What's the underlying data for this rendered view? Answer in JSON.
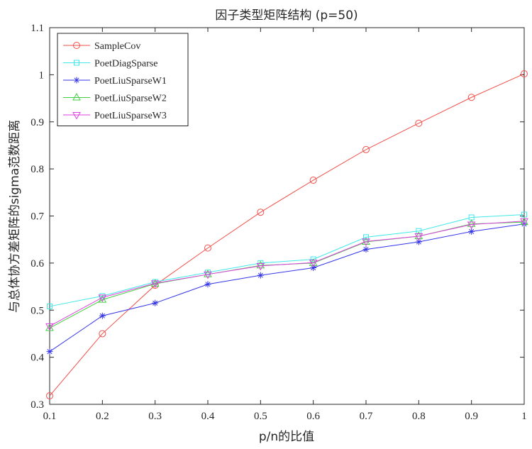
{
  "chart_data": {
    "type": "line",
    "title": "因子类型矩阵结构 (p=50)",
    "xlabel": "p/n的比值",
    "ylabel": "与总体协方差矩阵的sigma范数距离",
    "xlim": [
      0.1,
      1
    ],
    "ylim": [
      0.3,
      1.1
    ],
    "x": [
      0.1,
      0.2,
      0.3,
      0.4,
      0.5,
      0.6,
      0.7,
      0.8,
      0.9,
      1.0
    ],
    "xticks": [
      "0.1",
      "0.2",
      "0.3",
      "0.4",
      "0.5",
      "0.6",
      "0.7",
      "0.8",
      "0.9",
      "1"
    ],
    "yticks": [
      "0.3",
      "0.4",
      "0.5",
      "0.6",
      "0.7",
      "0.8",
      "0.9",
      "1",
      "1.1"
    ],
    "grid": false,
    "legend_position": "top-left",
    "series": [
      {
        "name": "SampleCov",
        "color": "#f0504a",
        "marker": "circle",
        "values": [
          0.318,
          0.45,
          0.553,
          0.632,
          0.708,
          0.776,
          0.841,
          0.897,
          0.952,
          1.002
        ]
      },
      {
        "name": "PoetDiagSparse",
        "color": "#40e8e8",
        "marker": "square",
        "values": [
          0.508,
          0.53,
          0.56,
          0.58,
          0.6,
          0.608,
          0.655,
          0.668,
          0.697,
          0.703
        ]
      },
      {
        "name": "PoetLiuSparseW1",
        "color": "#3535e8",
        "marker": "asterisk",
        "values": [
          0.412,
          0.488,
          0.515,
          0.555,
          0.574,
          0.59,
          0.629,
          0.645,
          0.667,
          0.683
        ]
      },
      {
        "name": "PoetLiuSparseW2",
        "color": "#40d040",
        "marker": "triangle-up",
        "values": [
          0.462,
          0.522,
          0.556,
          0.576,
          0.595,
          0.6,
          0.645,
          0.657,
          0.683,
          0.687
        ]
      },
      {
        "name": "PoetLiuSparseW3",
        "color": "#e040e0",
        "marker": "triangle-down",
        "values": [
          0.466,
          0.527,
          0.557,
          0.576,
          0.594,
          0.601,
          0.646,
          0.657,
          0.682,
          0.689
        ]
      }
    ]
  }
}
